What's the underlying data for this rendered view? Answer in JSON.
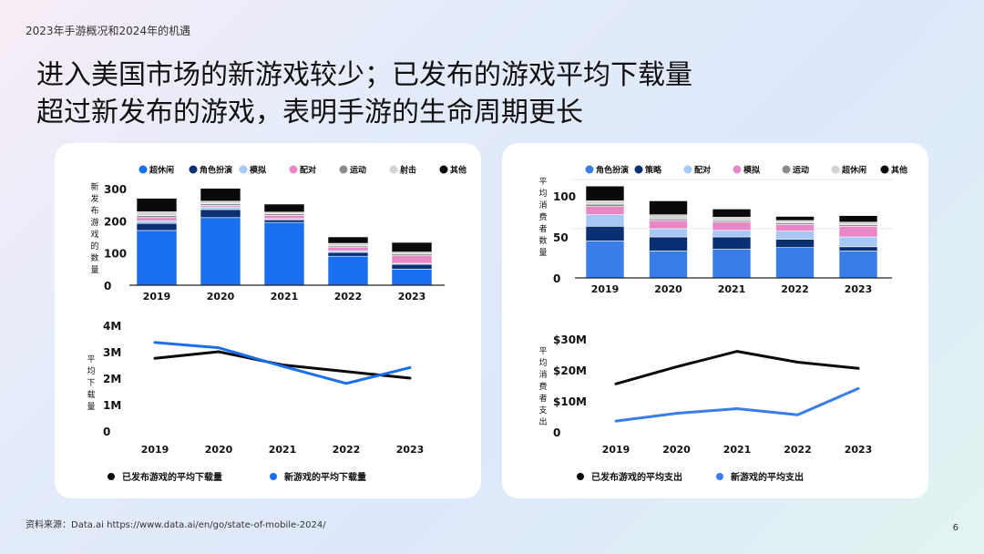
{
  "header": {
    "subtitle": "2023年手游概况和2024年的机遇"
  },
  "title": {
    "line1": "进入美国市场的新游戏较少；已发布的游戏平均下载量",
    "line2": "超过新发布的游戏，表明手游的生命周期更长"
  },
  "footer": {
    "source": "资料来源：Data.ai  https://www.data.ai/en/go/state-of-mobile-2024/",
    "page": "6"
  },
  "colors": {
    "blue": "#1a6ff0",
    "navy": "#0b2f73",
    "lightblue": "#a7c8f5",
    "pink": "#e887c6",
    "gray": "#8c8c8c",
    "lightgray": "#d4d4d4",
    "black": "#0a0a0a",
    "midblue": "#3b7de8"
  },
  "chart_data": [
    {
      "type": "bar",
      "stacked": true,
      "ylabel": "新发布游戏的数量",
      "categories": [
        "2019",
        "2020",
        "2021",
        "2022",
        "2023"
      ],
      "ylim": [
        0,
        300
      ],
      "yticks": [
        "0",
        "100",
        "200",
        "300"
      ],
      "series": [
        {
          "name": "超休闲",
          "color": "blue",
          "values": [
            170,
            210,
            195,
            90,
            50
          ]
        },
        {
          "name": "角色扮演",
          "color": "navy",
          "values": [
            22,
            25,
            8,
            12,
            15
          ]
        },
        {
          "name": "模拟",
          "color": "lightblue",
          "values": [
            8,
            8,
            4,
            5,
            3
          ]
        },
        {
          "name": "配对",
          "color": "pink",
          "values": [
            10,
            5,
            10,
            10,
            25
          ]
        },
        {
          "name": "运动",
          "color": "gray",
          "values": [
            6,
            5,
            5,
            5,
            5
          ]
        },
        {
          "name": "射击",
          "color": "lightgray",
          "values": [
            12,
            8,
            5,
            8,
            5
          ]
        },
        {
          "name": "其他",
          "color": "black",
          "values": [
            42,
            40,
            25,
            20,
            30
          ]
        }
      ]
    },
    {
      "type": "line",
      "ylabel": "平均下载量",
      "categories": [
        "2019",
        "2020",
        "2021",
        "2022",
        "2023"
      ],
      "ylim": [
        0,
        4
      ],
      "yticks": [
        "0",
        "1M",
        "2M",
        "3M",
        "4M"
      ],
      "series": [
        {
          "name": "已发布游戏的平均下载量",
          "color": "black",
          "values": [
            2.75,
            3.0,
            2.5,
            2.25,
            2.0
          ]
        },
        {
          "name": "新游戏的平均下载量",
          "color": "blue",
          "values": [
            3.35,
            3.15,
            2.45,
            1.8,
            2.4
          ]
        }
      ]
    },
    {
      "type": "bar",
      "stacked": true,
      "ylabel": "平均消费者数量",
      "categories": [
        "2019",
        "2020",
        "2021",
        "2022",
        "2023"
      ],
      "ylim": [
        0,
        120
      ],
      "yticks": [
        "0",
        "50",
        "100"
      ],
      "series": [
        {
          "name": "角色扮演",
          "color": "midblue",
          "values": [
            45,
            33,
            35,
            37,
            33
          ]
        },
        {
          "name": "策略",
          "color": "navy",
          "values": [
            18,
            17,
            15,
            10,
            5
          ]
        },
        {
          "name": "配对",
          "color": "lightblue",
          "values": [
            14,
            10,
            8,
            10,
            12
          ]
        },
        {
          "name": "模拟",
          "color": "pink",
          "values": [
            10,
            10,
            10,
            8,
            13
          ]
        },
        {
          "name": "运动",
          "color": "gray",
          "values": [
            3,
            2,
            2,
            2,
            2
          ]
        },
        {
          "name": "超休闲",
          "color": "lightgray",
          "values": [
            4,
            5,
            4,
            3,
            3
          ]
        },
        {
          "name": "其他",
          "color": "black",
          "values": [
            18,
            17,
            10,
            5,
            8
          ]
        }
      ]
    },
    {
      "type": "line",
      "ylabel": "平均消费者支出",
      "categories": [
        "2019",
        "2020",
        "2021",
        "2022",
        "2023"
      ],
      "ylim": [
        0,
        30
      ],
      "yticks": [
        "0",
        "$10M",
        "$20M",
        "$30M"
      ],
      "series": [
        {
          "name": "已发布游戏的平均支出",
          "color": "black",
          "values": [
            15.5,
            21,
            26,
            22.5,
            20.5
          ]
        },
        {
          "name": "新游戏的平均支出",
          "color": "midblue",
          "values": [
            3.5,
            6,
            7.5,
            5.5,
            14
          ]
        }
      ]
    }
  ]
}
